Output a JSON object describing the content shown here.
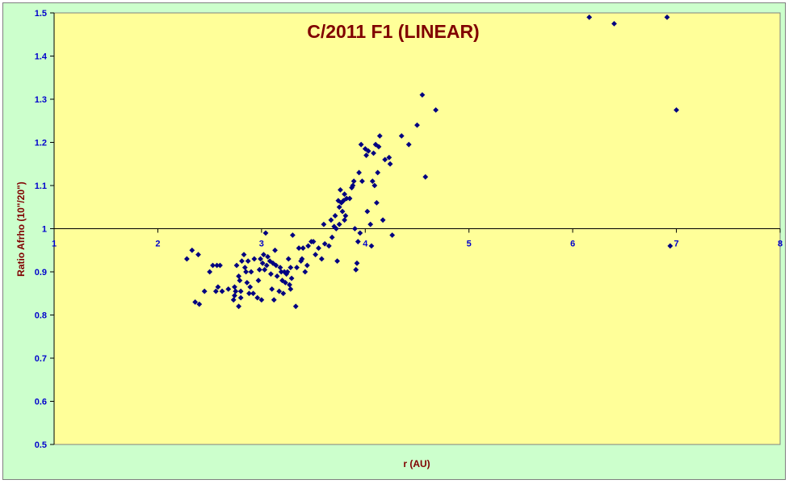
{
  "chart_data": {
    "type": "scatter",
    "title": "C/2011 F1 (LINEAR)",
    "xlabel": "r (AU)",
    "ylabel": "Ratio Afrho (10\"/20\")",
    "xlim": [
      1,
      8
    ],
    "ylim": [
      0.5,
      1.5
    ],
    "x_ticks": [
      "1",
      "2",
      "3",
      "4",
      "5",
      "6",
      "7",
      "8"
    ],
    "y_ticks": [
      "0.5",
      "0.6",
      "0.7",
      "0.8",
      "0.9",
      "1",
      "1.1",
      "1.2",
      "1.3",
      "1.4",
      "1.5"
    ],
    "x_axis_crosses_at_y": 1,
    "grid": false,
    "legend": "none",
    "colors": {
      "plot_area": "#ffff99",
      "chart_area": "#ccffcc",
      "marker": "#000080",
      "title": "#800000",
      "ticks": "#0000cc"
    },
    "points": [
      [
        2.28,
        0.93
      ],
      [
        2.33,
        0.95
      ],
      [
        2.36,
        0.83
      ],
      [
        2.39,
        0.94
      ],
      [
        2.4,
        0.825
      ],
      [
        2.45,
        0.855
      ],
      [
        2.5,
        0.9
      ],
      [
        2.53,
        0.915
      ],
      [
        2.56,
        0.855
      ],
      [
        2.57,
        0.915
      ],
      [
        2.58,
        0.865
      ],
      [
        2.6,
        0.915
      ],
      [
        2.62,
        0.855
      ],
      [
        2.68,
        0.86
      ],
      [
        2.73,
        0.835
      ],
      [
        2.74,
        0.845
      ],
      [
        2.74,
        0.865
      ],
      [
        2.75,
        0.855
      ],
      [
        2.76,
        0.915
      ],
      [
        2.78,
        0.89
      ],
      [
        2.78,
        0.82
      ],
      [
        2.79,
        0.88
      ],
      [
        2.8,
        0.855
      ],
      [
        2.8,
        0.84
      ],
      [
        2.81,
        0.925
      ],
      [
        2.83,
        0.94
      ],
      [
        2.84,
        0.91
      ],
      [
        2.85,
        0.9
      ],
      [
        2.86,
        0.875
      ],
      [
        2.87,
        0.925
      ],
      [
        2.88,
        0.85
      ],
      [
        2.89,
        0.865
      ],
      [
        2.9,
        0.9
      ],
      [
        2.92,
        0.85
      ],
      [
        2.93,
        0.93
      ],
      [
        2.96,
        0.84
      ],
      [
        2.97,
        0.88
      ],
      [
        2.98,
        0.905
      ],
      [
        2.99,
        0.93
      ],
      [
        3.0,
        0.835
      ],
      [
        3.01,
        0.92
      ],
      [
        3.02,
        0.94
      ],
      [
        3.03,
        0.905
      ],
      [
        3.04,
        0.99
      ],
      [
        3.05,
        0.915
      ],
      [
        3.06,
        0.935
      ],
      [
        3.08,
        0.925
      ],
      [
        3.09,
        0.895
      ],
      [
        3.1,
        0.86
      ],
      [
        3.11,
        0.92
      ],
      [
        3.12,
        0.835
      ],
      [
        3.13,
        0.95
      ],
      [
        3.14,
        0.915
      ],
      [
        3.15,
        0.89
      ],
      [
        3.17,
        0.855
      ],
      [
        3.18,
        0.91
      ],
      [
        3.19,
        0.9
      ],
      [
        3.2,
        0.88
      ],
      [
        3.21,
        0.85
      ],
      [
        3.22,
        0.9
      ],
      [
        3.23,
        0.875
      ],
      [
        3.24,
        0.895
      ],
      [
        3.25,
        0.9
      ],
      [
        3.26,
        0.93
      ],
      [
        3.27,
        0.87
      ],
      [
        3.28,
        0.91
      ],
      [
        3.28,
        0.86
      ],
      [
        3.29,
        0.885
      ],
      [
        3.3,
        0.985
      ],
      [
        3.33,
        0.82
      ],
      [
        3.34,
        0.91
      ],
      [
        3.36,
        0.955
      ],
      [
        3.38,
        0.925
      ],
      [
        3.39,
        0.93
      ],
      [
        3.4,
        0.955
      ],
      [
        3.42,
        0.9
      ],
      [
        3.44,
        0.915
      ],
      [
        3.45,
        0.96
      ],
      [
        3.48,
        0.97
      ],
      [
        3.5,
        0.97
      ],
      [
        3.52,
        0.94
      ],
      [
        3.55,
        0.955
      ],
      [
        3.58,
        0.93
      ],
      [
        3.6,
        1.01
      ],
      [
        3.61,
        0.965
      ],
      [
        3.65,
        0.96
      ],
      [
        3.67,
        1.02
      ],
      [
        3.68,
        0.98
      ],
      [
        3.7,
        1.005
      ],
      [
        3.71,
        1.03
      ],
      [
        3.72,
        1.0
      ],
      [
        3.73,
        0.925
      ],
      [
        3.74,
        1.065
      ],
      [
        3.75,
        1.01
      ],
      [
        3.75,
        1.05
      ],
      [
        3.76,
        1.09
      ],
      [
        3.77,
        1.06
      ],
      [
        3.78,
        1.04
      ],
      [
        3.79,
        1.065
      ],
      [
        3.8,
        1.08
      ],
      [
        3.8,
        1.02
      ],
      [
        3.81,
        1.03
      ],
      [
        3.82,
        1.07
      ],
      [
        3.85,
        1.07
      ],
      [
        3.87,
        1.095
      ],
      [
        3.88,
        1.1
      ],
      [
        3.89,
        1.11
      ],
      [
        3.9,
        1.0
      ],
      [
        3.91,
        0.905
      ],
      [
        3.92,
        0.92
      ],
      [
        3.93,
        0.97
      ],
      [
        3.94,
        1.13
      ],
      [
        3.95,
        0.99
      ],
      [
        3.96,
        1.195
      ],
      [
        3.97,
        1.11
      ],
      [
        4.0,
        1.185
      ],
      [
        4.01,
        1.17
      ],
      [
        4.02,
        1.04
      ],
      [
        4.03,
        1.18
      ],
      [
        4.05,
        1.01
      ],
      [
        4.06,
        0.96
      ],
      [
        4.07,
        1.11
      ],
      [
        4.08,
        1.175
      ],
      [
        4.09,
        1.1
      ],
      [
        4.1,
        1.195
      ],
      [
        4.11,
        1.06
      ],
      [
        4.12,
        1.13
      ],
      [
        4.13,
        1.19
      ],
      [
        4.14,
        1.215
      ],
      [
        4.17,
        1.02
      ],
      [
        4.19,
        1.16
      ],
      [
        4.23,
        1.165
      ],
      [
        4.24,
        1.15
      ],
      [
        4.26,
        0.985
      ],
      [
        4.35,
        1.215
      ],
      [
        4.42,
        1.195
      ],
      [
        4.5,
        1.24
      ],
      [
        4.55,
        1.31
      ],
      [
        4.58,
        1.12
      ],
      [
        4.68,
        1.275
      ],
      [
        6.16,
        1.49
      ],
      [
        6.4,
        1.475
      ],
      [
        6.91,
        1.49
      ],
      [
        6.94,
        0.96
      ],
      [
        7.0,
        1.275
      ]
    ]
  }
}
